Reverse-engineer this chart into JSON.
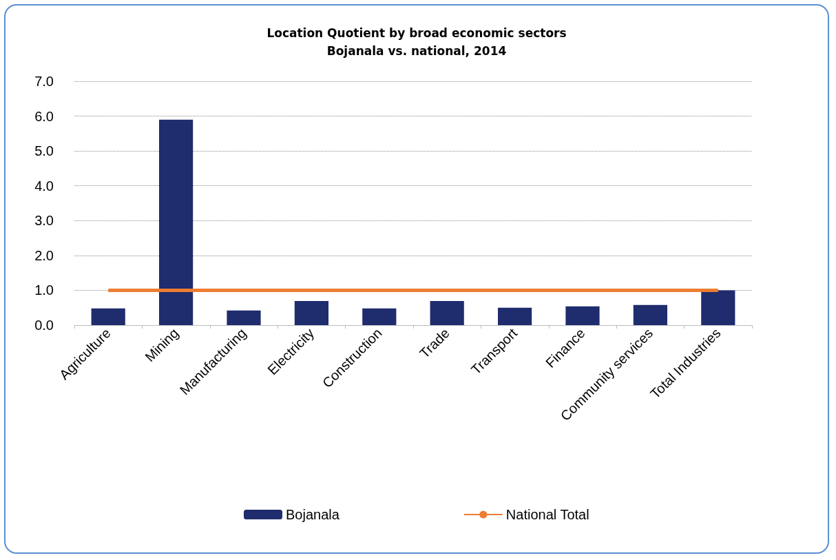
{
  "chart_data": {
    "type": "bar",
    "title": "Location Quotient by broad economic sectors\nBojanala vs. national, 2014",
    "categories": [
      "Agriculture",
      "Mining",
      "Manufacturing",
      "Electricity",
      "Construction",
      "Trade",
      "Transport",
      "Finance",
      "Community services",
      "Total Industries"
    ],
    "series": [
      {
        "name": "Bojanala",
        "color": "#1f2c6e",
        "values": [
          0.48,
          5.9,
          0.42,
          0.69,
          0.48,
          0.69,
          0.5,
          0.54,
          0.58,
          1.0
        ]
      },
      {
        "name": "National Total",
        "type": "line",
        "color": "#ed7d31",
        "values": [
          1,
          1,
          1,
          1,
          1,
          1,
          1,
          1,
          1,
          1
        ]
      }
    ],
    "ylim": [
      0,
      7
    ],
    "yticks": [
      {
        "value": 0,
        "label": "0.0"
      },
      {
        "value": 1,
        "label": "1.0"
      },
      {
        "value": 2,
        "label": "2.0"
      },
      {
        "value": 3,
        "label": "3.0"
      },
      {
        "value": 4,
        "label": "4.0"
      },
      {
        "value": 5,
        "label": "5.0"
      },
      {
        "value": 6,
        "label": "6.0"
      },
      {
        "value": 7,
        "label": "7.0"
      }
    ],
    "grid": "y",
    "legend": "bottom",
    "marker": "none",
    "line_style": "solid"
  }
}
